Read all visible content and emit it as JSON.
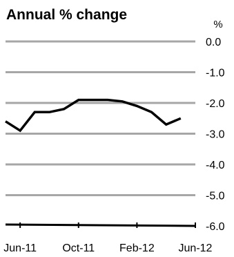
{
  "chart_data": {
    "type": "line",
    "title": "Annual % change",
    "ylabel": "%",
    "xlabel": "",
    "ylim": [
      -6.0,
      0.0
    ],
    "y_ticks": [
      "0.0",
      "-1.0",
      "-2.0",
      "-3.0",
      "-4.0",
      "-5.0",
      "-6.0"
    ],
    "x_tick_labels": [
      "Jun-11",
      "Oct-11",
      "Feb-12",
      "Jun-12"
    ],
    "grid": true,
    "legend": "none",
    "series": [
      {
        "x": [
          "May-11",
          "Jun-11",
          "Jul-11",
          "Aug-11",
          "Sep-11",
          "Oct-11",
          "Nov-11",
          "Dec-11",
          "Jan-12",
          "Feb-12",
          "Mar-12",
          "Apr-12",
          "May-12",
          "Jun-12"
        ],
        "values": [
          -2.6,
          -2.9,
          -2.3,
          -2.3,
          -2.2,
          -1.9,
          -1.9,
          -1.9,
          -1.95,
          -2.1,
          -2.3,
          -2.7,
          -2.5,
          null
        ],
        "color": "#000000"
      }
    ]
  },
  "colors": {
    "grid": "#a6a6a6",
    "line": "#000000",
    "axis": "#000000"
  }
}
